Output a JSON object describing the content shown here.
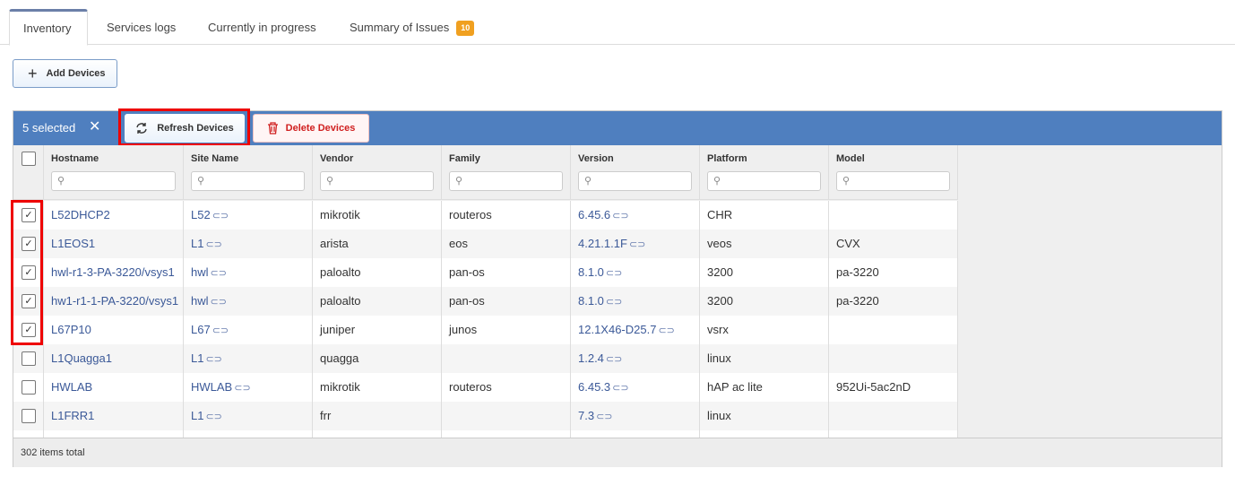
{
  "tabs": [
    {
      "label": "Inventory",
      "active": true
    },
    {
      "label": "Services logs"
    },
    {
      "label": "Currently in progress"
    },
    {
      "label": "Summary of Issues",
      "badge": "10"
    }
  ],
  "toolbar": {
    "add_label": "Add Devices"
  },
  "selection": {
    "count_label": "5 selected",
    "refresh_label": "Refresh Devices",
    "delete_label": "Delete Devices"
  },
  "columns": [
    "Hostname",
    "Site Name",
    "Vendor",
    "Family",
    "Version",
    "Platform",
    "Model"
  ],
  "rows": [
    {
      "checked": true,
      "hostname": "L52DHCP2",
      "site": "L52",
      "vendor": "mikrotik",
      "family": "routeros",
      "version": "6.45.6",
      "platform": "CHR",
      "model": ""
    },
    {
      "checked": true,
      "hostname": "L1EOS1",
      "site": "L1",
      "vendor": "arista",
      "family": "eos",
      "version": "4.21.1.1F",
      "platform": "veos",
      "model": "CVX"
    },
    {
      "checked": true,
      "hostname": "hwl-r1-3-PA-3220/vsys1",
      "site": "hwl",
      "vendor": "paloalto",
      "family": "pan-os",
      "version": "8.1.0",
      "platform": "3200",
      "model": "pa-3220"
    },
    {
      "checked": true,
      "hostname": "hw1-r1-1-PA-3220/vsys1",
      "site": "hwl",
      "vendor": "paloalto",
      "family": "pan-os",
      "version": "8.1.0",
      "platform": "3200",
      "model": "pa-3220"
    },
    {
      "checked": true,
      "hostname": "L67P10",
      "site": "L67",
      "vendor": "juniper",
      "family": "junos",
      "version": "12.1X46-D25.7",
      "platform": "vsrx",
      "model": ""
    },
    {
      "checked": false,
      "hostname": "L1Quagga1",
      "site": "L1",
      "vendor": "quagga",
      "family": "",
      "version": "1.2.4",
      "platform": "linux",
      "model": ""
    },
    {
      "checked": false,
      "hostname": "HWLAB",
      "site": "HWLAB",
      "vendor": "mikrotik",
      "family": "routeros",
      "version": "6.45.3",
      "platform": "hAP ac lite",
      "model": "952Ui-5ac2nD"
    },
    {
      "checked": false,
      "hostname": "L1FRR1",
      "site": "L1",
      "vendor": "frr",
      "family": "",
      "version": "7.3",
      "platform": "linux",
      "model": ""
    }
  ],
  "footer": {
    "total": "302 items total"
  },
  "colors": {
    "accent": "#4f7fbf",
    "highlight": "#ee0000",
    "badge": "#f0a020",
    "danger": "#d02020"
  }
}
